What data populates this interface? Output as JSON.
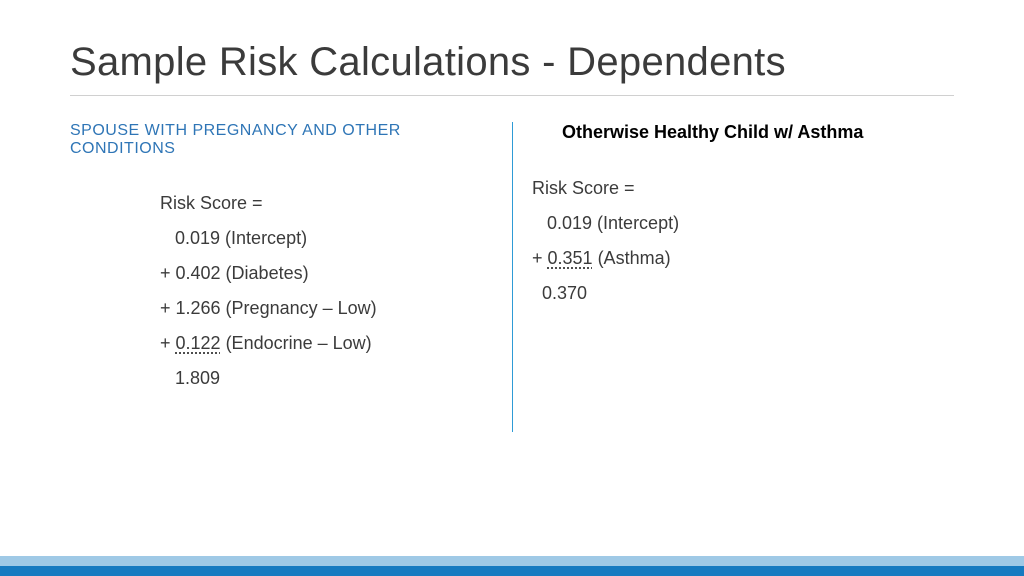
{
  "title": "Sample Risk Calculations - Dependents",
  "colors": {
    "title_text": "#3b3b3b",
    "title_rule": "#d0d0d0",
    "subhead_left": "#2e75b6",
    "subhead_right": "#000000",
    "body_text": "#3b3b3b",
    "divider": "#2e9bd6",
    "footer_top": "#9fc9e6",
    "footer_bottom": "#167ac0",
    "background": "#ffffff"
  },
  "typography": {
    "title_fontsize": 40,
    "title_weight": 300,
    "subhead_left_fontsize": 16,
    "subhead_right_fontsize": 18,
    "subhead_right_weight": 700,
    "body_fontsize": 18,
    "line_height": 1.95
  },
  "left": {
    "heading": "SPOUSE WITH PREGNANCY AND OTHER CONDITIONS",
    "label": "Risk Score =",
    "lines": {
      "l1": "   0.019 (Intercept)",
      "l2": "+ 0.402 (Diabetes)",
      "l3": "+ 1.266 (Pregnancy – Low)",
      "l4_prefix": "+ ",
      "l4_val": "0.122",
      "l4_suffix": " (Endocrine – Low)",
      "total": "   1.809"
    }
  },
  "right": {
    "heading": "Otherwise Healthy Child w/ Asthma",
    "label": "Risk Score =",
    "lines": {
      "l1": "   0.019 (Intercept)",
      "l2_prefix": "+ ",
      "l2_val": "0.351",
      "l2_suffix": " (Asthma)",
      "total": "  0.370"
    }
  }
}
